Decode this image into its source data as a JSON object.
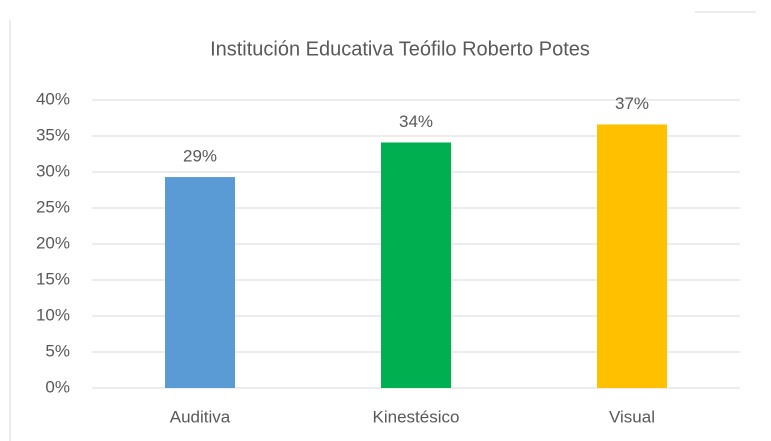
{
  "chart_data": {
    "type": "bar",
    "title": "Institución Educativa Teófilo Roberto Potes",
    "categories": [
      "Auditiva",
      "Kinestésico",
      "Visual"
    ],
    "values": [
      29.3,
      34.1,
      36.6
    ],
    "value_labels": [
      "29%",
      "34%",
      "37%"
    ],
    "colors": [
      "#5b9bd5",
      "#00b050",
      "#ffc000"
    ],
    "ylim": [
      0,
      40
    ],
    "yticks": [
      {
        "value": 0,
        "label": "0%"
      },
      {
        "value": 5,
        "label": "5%"
      },
      {
        "value": 10,
        "label": "10%"
      },
      {
        "value": 15,
        "label": "15%"
      },
      {
        "value": 20,
        "label": "20%"
      },
      {
        "value": 25,
        "label": "25%"
      },
      {
        "value": 30,
        "label": "30%"
      },
      {
        "value": 35,
        "label": "35%"
      },
      {
        "value": 40,
        "label": "40%"
      }
    ],
    "grid": true
  }
}
